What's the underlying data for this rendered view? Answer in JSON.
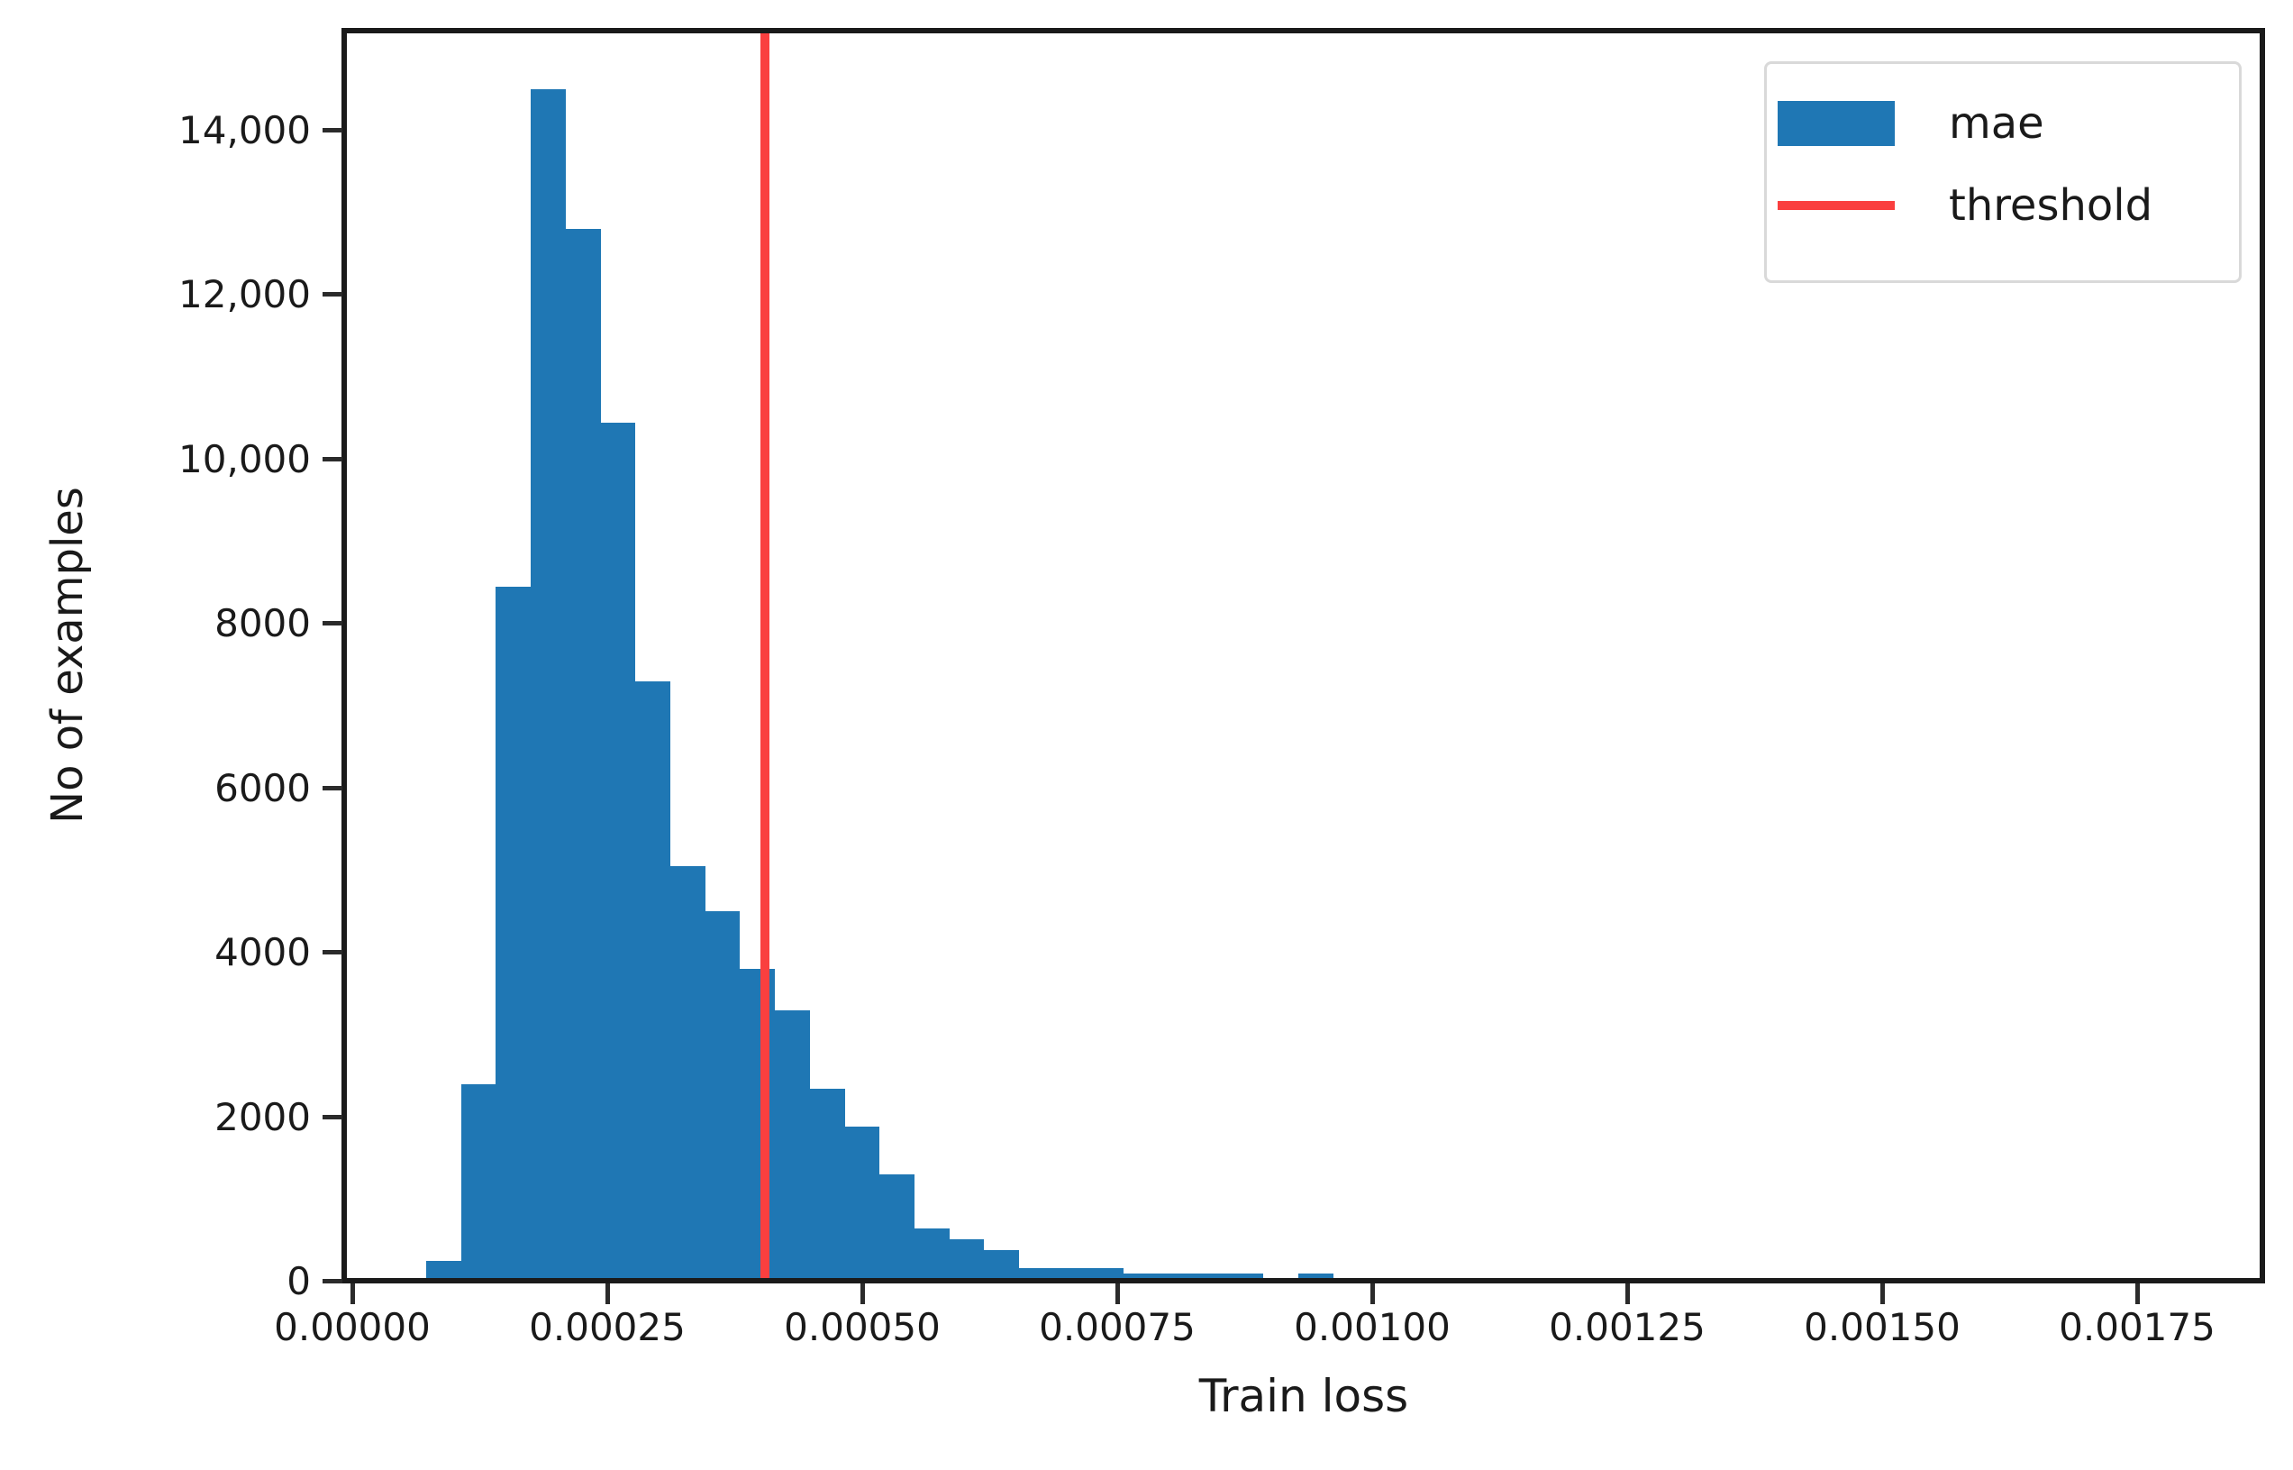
{
  "chart_data": {
    "type": "bar",
    "subtype": "histogram",
    "title": "",
    "xlabel": "Train loss",
    "ylabel": "No of examples",
    "x_tick_labels": [
      "0.00000",
      "0.00025",
      "0.00050",
      "0.00075",
      "0.00100",
      "0.00125",
      "0.00150",
      "0.00175"
    ],
    "x_tick_values": [
      0.0,
      0.00025,
      0.0005,
      0.00075,
      0.001,
      0.00125,
      0.0015,
      0.00175
    ],
    "y_tick_labels": [
      "0",
      "2000",
      "4000",
      "6000",
      "8000",
      "10,000",
      "12,000",
      "14,000"
    ],
    "y_tick_values": [
      0,
      2000,
      4000,
      6000,
      8000,
      10000,
      12000,
      14000
    ],
    "xlim": [
      -9.7e-06,
      0.0018728
    ],
    "ylim": [
      0,
      15225
    ],
    "grid": false,
    "bin_start": 7.24e-05,
    "bin_width": 3.42e-05,
    "counts": [
      250,
      2400,
      8450,
      14500,
      12800,
      10450,
      7300,
      5050,
      4500,
      3800,
      3300,
      2350,
      1880,
      1300,
      650,
      520,
      380,
      160,
      160,
      160,
      95,
      95,
      95,
      95,
      0,
      100
    ],
    "threshold": 0.000405,
    "legend": {
      "position": "upper right",
      "items": [
        {
          "label": "mae",
          "swatch": "patch",
          "color": "#1f77b4"
        },
        {
          "label": "threshold",
          "swatch": "line",
          "color": "#fa3f3f"
        }
      ]
    },
    "colors": {
      "bar": "#1f77b4",
      "threshold_line": "#fa3f3f",
      "axis": "#1a1a1a",
      "legend_border": "#d9d9d9"
    }
  }
}
